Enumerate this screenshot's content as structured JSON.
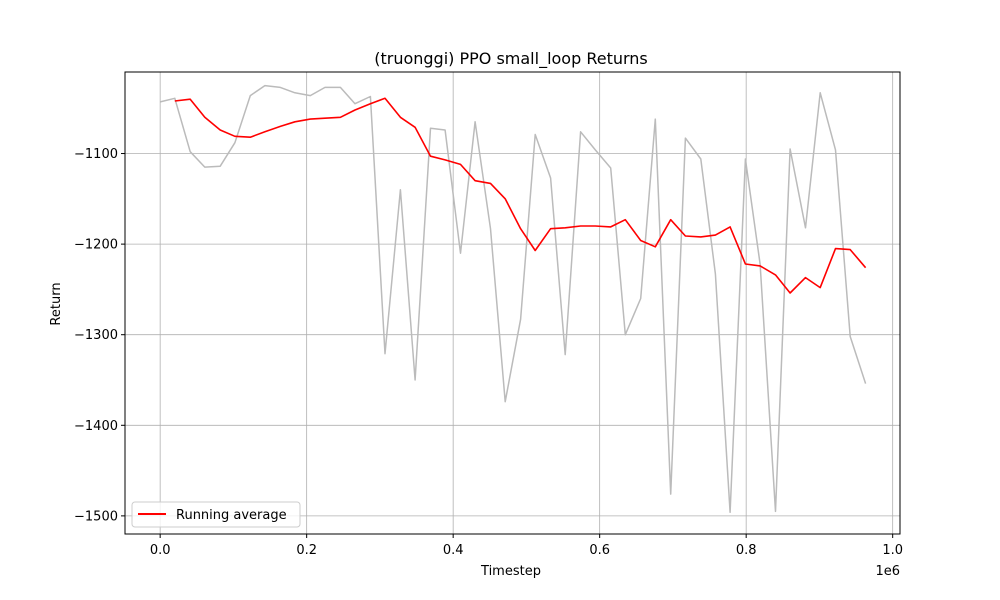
{
  "chart_data": {
    "type": "line",
    "title": "(truonggi) PPO small_loop Returns",
    "xlabel": "Timestep",
    "ylabel": "Return",
    "x_offset_label": "1e6",
    "xlim": [
      -0.048,
      1.01
    ],
    "ylim": [
      -1520,
      -1010
    ],
    "x_ticks": [
      0.0,
      0.2,
      0.4,
      0.6,
      0.8,
      1.0
    ],
    "x_tick_labels": [
      "0.0",
      "0.2",
      "0.4",
      "0.6",
      "0.8",
      "1.0"
    ],
    "y_ticks": [
      -1100,
      -1200,
      -1300,
      -1400,
      -1500
    ],
    "y_tick_labels": [
      "−1100",
      "−1200",
      "−1300",
      "−1400",
      "−1500"
    ],
    "grid": true,
    "legend_position": "lower-left",
    "series": [
      {
        "color": "#bbbbbb",
        "x": [
          0.0,
          0.02,
          0.041,
          0.061,
          0.082,
          0.102,
          0.123,
          0.143,
          0.164,
          0.184,
          0.205,
          0.225,
          0.246,
          0.266,
          0.287,
          0.307,
          0.328,
          0.348,
          0.369,
          0.389,
          0.41,
          0.43,
          0.451,
          0.471,
          0.492,
          0.512,
          0.533,
          0.553,
          0.574,
          0.594,
          0.615,
          0.635,
          0.656,
          0.676,
          0.697,
          0.717,
          0.738,
          0.758,
          0.778,
          0.799,
          0.819,
          0.84,
          0.86,
          0.881,
          0.901,
          0.922,
          0.942,
          0.963
        ],
        "values": [
          -1043,
          -1039,
          -1098,
          -1115,
          -1114,
          -1088,
          -1036,
          -1025,
          -1027,
          -1033,
          -1036,
          -1027,
          -1027,
          -1045,
          -1037,
          -1321,
          -1140,
          -1350,
          -1072,
          -1074,
          -1210,
          -1065,
          -1183,
          -1374,
          -1283,
          -1079,
          -1127,
          -1322,
          -1076,
          -1096,
          -1116,
          -1300,
          -1260,
          -1062,
          -1476,
          -1083,
          -1106,
          -1233,
          -1496,
          -1106,
          -1222,
          -1495,
          -1095,
          -1182,
          -1033,
          -1096,
          -1302,
          -1354
        ]
      },
      {
        "name": "Running average",
        "color": "#ff0000",
        "x": [
          0.02,
          0.041,
          0.061,
          0.082,
          0.102,
          0.123,
          0.143,
          0.164,
          0.184,
          0.205,
          0.225,
          0.246,
          0.266,
          0.287,
          0.307,
          0.328,
          0.348,
          0.369,
          0.389,
          0.41,
          0.43,
          0.451,
          0.471,
          0.492,
          0.512,
          0.533,
          0.553,
          0.574,
          0.594,
          0.615,
          0.635,
          0.656,
          0.676,
          0.697,
          0.717,
          0.738,
          0.758,
          0.778,
          0.799,
          0.819,
          0.84,
          0.86,
          0.881,
          0.901,
          0.922,
          0.942,
          0.963
        ],
        "values": [
          -1042,
          -1040,
          -1060,
          -1074,
          -1081,
          -1082,
          -1076,
          -1070,
          -1065,
          -1062,
          -1061,
          -1060,
          -1052,
          -1045,
          -1039,
          -1060,
          -1071,
          -1103,
          -1107,
          -1112,
          -1130,
          -1133,
          -1150,
          -1183,
          -1207,
          -1183,
          -1182,
          -1180,
          -1180,
          -1181,
          -1173,
          -1196,
          -1203,
          -1173,
          -1191,
          -1192,
          -1190,
          -1181,
          -1222,
          -1224,
          -1234,
          -1254,
          -1237,
          -1248,
          -1205,
          -1206,
          -1226
        ]
      }
    ]
  }
}
